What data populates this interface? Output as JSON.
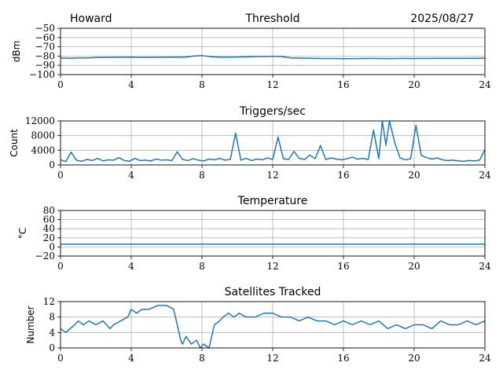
{
  "header": {
    "station": "Howard",
    "date": "2025/08/27"
  },
  "colors": {
    "series": "#1f77b4",
    "grid": "#b0b0b0"
  },
  "chart_data": [
    {
      "type": "line",
      "title": "Threshold",
      "xlabel": "",
      "ylabel": "dBm",
      "xlim": [
        0,
        24
      ],
      "ylim": [
        -100,
        -50
      ],
      "xticks": [
        "0",
        "4",
        "8",
        "12",
        "16",
        "20",
        "24"
      ],
      "yticks": [
        "−50",
        "−60",
        "−70",
        "−80",
        "−90",
        "−100"
      ],
      "ytick_values": [
        -50,
        -60,
        -70,
        -80,
        -90,
        -100
      ],
      "grid": true,
      "series": [
        {
          "x": [
            0,
            0.5,
            1,
            1.5,
            2,
            2.5,
            3,
            3.5,
            4,
            4.5,
            5,
            5.5,
            6,
            6.5,
            7,
            7.5,
            8,
            8.5,
            9,
            9.5,
            10,
            10.5,
            11,
            11.5,
            12,
            12.5,
            13,
            13.5,
            14,
            14.5,
            15,
            15.5,
            16,
            16.5,
            17,
            17.5,
            18,
            18.5,
            19,
            19.5,
            20,
            20.5,
            21,
            21.5,
            22,
            22.5,
            23,
            23.5,
            24
          ],
          "values": [
            -82,
            -82.4,
            -82,
            -82,
            -81.6,
            -81.5,
            -81.4,
            -81.4,
            -81.3,
            -81.5,
            -81.5,
            -81.4,
            -81.3,
            -81.3,
            -81.2,
            -80,
            -79.4,
            -80.6,
            -81.2,
            -81.2,
            -81,
            -80.8,
            -80.5,
            -80.4,
            -80.2,
            -80.4,
            -82,
            -82.2,
            -82.3,
            -82.5,
            -82.6,
            -82.6,
            -82.8,
            -82.7,
            -82.6,
            -82.5,
            -82.6,
            -82.7,
            -82.6,
            -82.5,
            -82.6,
            -82.5,
            -82.5,
            -82.4,
            -82.4,
            -82.4,
            -82.3,
            -82.4,
            -82.2
          ]
        }
      ]
    },
    {
      "type": "line",
      "title": "Triggers/sec",
      "xlabel": "",
      "ylabel": "Count",
      "xlim": [
        0,
        24
      ],
      "ylim": [
        0,
        12000
      ],
      "xticks": [
        "0",
        "4",
        "8",
        "12",
        "16",
        "20",
        "24"
      ],
      "yticks": [
        "0",
        "4000",
        "8000",
        "12000"
      ],
      "ytick_values": [
        0,
        4000,
        8000,
        12000
      ],
      "grid": true,
      "series": [
        {
          "x": [
            0,
            0.3,
            0.6,
            0.9,
            1.2,
            1.5,
            1.8,
            2.1,
            2.4,
            2.7,
            3,
            3.3,
            3.6,
            3.9,
            4.2,
            4.5,
            4.8,
            5.1,
            5.4,
            5.7,
            6,
            6.3,
            6.6,
            6.9,
            7.2,
            7.5,
            7.8,
            8.1,
            8.4,
            8.7,
            9,
            9.3,
            9.6,
            9.9,
            10.2,
            10.5,
            10.8,
            11.1,
            11.4,
            11.7,
            12,
            12.3,
            12.6,
            12.9,
            13.2,
            13.5,
            13.8,
            14.1,
            14.4,
            14.7,
            15,
            15.3,
            15.6,
            15.9,
            16.2,
            16.5,
            16.8,
            17.1,
            17.4,
            17.7,
            18,
            18.2,
            18.4,
            18.6,
            18.9,
            19.2,
            19.5,
            19.8,
            20.1,
            20.4,
            20.7,
            21,
            21.3,
            21.6,
            21.9,
            22.2,
            22.5,
            22.8,
            23.1,
            23.4,
            23.7,
            24
          ],
          "values": [
            1400,
            900,
            3500,
            1300,
            1000,
            1500,
            1200,
            1800,
            1100,
            1400,
            1300,
            2000,
            1200,
            1000,
            1800,
            1200,
            1300,
            1100,
            1600,
            1300,
            1400,
            1200,
            3600,
            1500,
            1200,
            1700,
            1300,
            1100,
            1600,
            1400,
            1800,
            1300,
            1500,
            8700,
            1300,
            1800,
            1200,
            1600,
            1400,
            1900,
            1500,
            7600,
            1700,
            1500,
            3700,
            1800,
            1500,
            2700,
            1700,
            5300,
            1500,
            1900,
            1600,
            1400,
            1700,
            2100,
            1600,
            1800,
            1500,
            9500,
            1700,
            12000,
            5400,
            12000,
            6100,
            1900,
            1400,
            1700,
            10800,
            2600,
            2000,
            1600,
            1900,
            1400,
            1200,
            1300,
            1100,
            1000,
            1200,
            1100,
            1300,
            4200
          ]
        }
      ]
    },
    {
      "type": "line",
      "title": "Temperature",
      "xlabel": "",
      "ylabel": "°C",
      "xlim": [
        0,
        24
      ],
      "ylim": [
        -20,
        80
      ],
      "xticks": [
        "0",
        "4",
        "8",
        "12",
        "16",
        "20",
        "24"
      ],
      "yticks": [
        "−20",
        "0",
        "20",
        "40",
        "60",
        "80"
      ],
      "ytick_values": [
        -20,
        0,
        20,
        40,
        60,
        80
      ],
      "grid": true,
      "series": [
        {
          "x": [
            0,
            24
          ],
          "values": [
            6,
            6
          ]
        }
      ]
    },
    {
      "type": "line",
      "title": "Satellites Tracked",
      "xlabel": "",
      "ylabel": "Number",
      "xlim": [
        0,
        24
      ],
      "ylim": [
        0,
        12
      ],
      "xticks": [
        "0",
        "4",
        "8",
        "12",
        "16",
        "20",
        "24"
      ],
      "yticks": [
        "0",
        "4",
        "8",
        "12"
      ],
      "ytick_values": [
        0,
        4,
        8,
        12
      ],
      "grid": true,
      "series": [
        {
          "x": [
            0,
            0.3,
            0.8,
            1.0,
            1.3,
            1.6,
            2.0,
            2.4,
            2.8,
            3.0,
            3.4,
            3.8,
            4.0,
            4.3,
            4.6,
            5.0,
            5.5,
            6.0,
            6.4,
            6.8,
            6.9,
            7.1,
            7.4,
            7.7,
            7.9,
            8.1,
            8.4,
            8.7,
            9.0,
            9.2,
            9.5,
            9.8,
            10.1,
            10.5,
            11.0,
            11.5,
            12.0,
            12.5,
            13.0,
            13.5,
            14.0,
            14.5,
            15.0,
            15.5,
            16.0,
            16.5,
            17.0,
            17.5,
            18.0,
            18.5,
            19.0,
            19.5,
            20.0,
            20.5,
            21.0,
            21.5,
            22.0,
            22.5,
            23.0,
            23.5,
            24.0
          ],
          "values": [
            5,
            4,
            6,
            7,
            6,
            7,
            6,
            7,
            5,
            6,
            7,
            8,
            10,
            9,
            10,
            10,
            11,
            11,
            10,
            2,
            1,
            3,
            1,
            2,
            0,
            1,
            0,
            6,
            7,
            8,
            9,
            8,
            9,
            8,
            8,
            9,
            9,
            8,
            8,
            7,
            8,
            7,
            7,
            6,
            7,
            6,
            7,
            6,
            7,
            5,
            6,
            5,
            6,
            6,
            5,
            7,
            6,
            6,
            7,
            6,
            7
          ]
        }
      ]
    }
  ]
}
